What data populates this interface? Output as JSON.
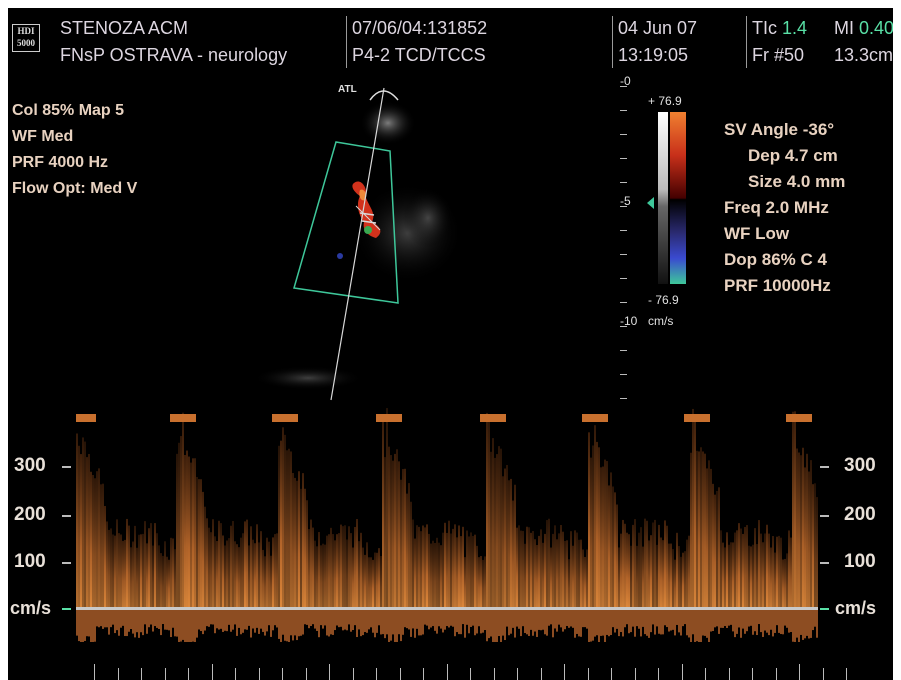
{
  "header": {
    "logo_top": "HDI",
    "logo_bottom": "5000",
    "patient": "STENOZA ACM",
    "institution": "FNsP OSTRAVA - neurology",
    "study_id": "07/06/04:131852",
    "probe": "P4-2 TCD/TCCS",
    "date": "04 Jun 07",
    "time": "13:19:05",
    "tic_label": "TIc",
    "tic_value": "1.4",
    "mi_label": "MI",
    "mi_value": "0.40",
    "frame": "Fr #50",
    "depth": "13.3cm"
  },
  "color_settings": [
    "Col 85%  Map 5",
    "WF Med",
    "PRF 4000  Hz",
    "Flow Opt: Med V"
  ],
  "atl_label": "ATL",
  "depth_scale": {
    "label_0": "0",
    "label_5": "5",
    "label_10": "10",
    "unit": "cm/s"
  },
  "color_bar": {
    "top": "+ 76.9",
    "bottom": "- 76.9"
  },
  "doppler_settings": [
    "SV Angle -36°",
    "Dep 4.7  cm",
    "Size 4.0  mm",
    "Freq 2.0  MHz",
    "WF Low",
    "Dop 86%  C 4",
    "PRF 10000Hz"
  ],
  "spectrum_axis": {
    "ticks": [
      "300",
      "200",
      "100"
    ],
    "baseline_label": "cm/s"
  },
  "colors": {
    "text": "#e8d2c0",
    "accent_green": "#59e0a6",
    "spectrum": "#e08a3c"
  }
}
